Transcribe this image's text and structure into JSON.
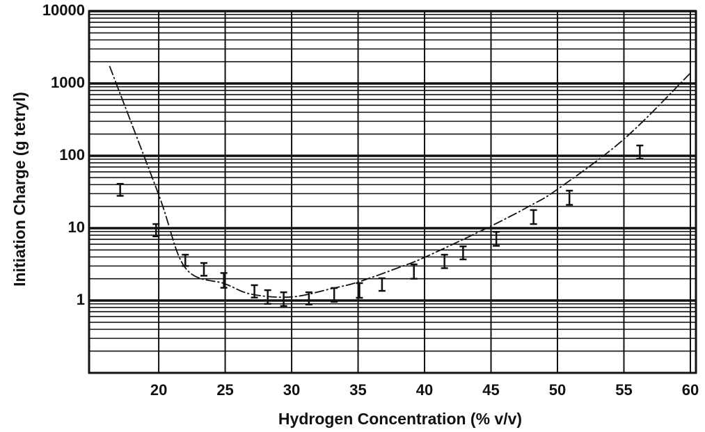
{
  "chart_data": {
    "type": "errorbar",
    "x_label": "Hydrogen Concentration (% v/v)",
    "y_label": "Initiation Charge (g tetryl)",
    "log_y": true,
    "grid": true,
    "color": "#111111",
    "xlim": [
      14.76,
      60.42
    ],
    "xticks": [
      20,
      25,
      30,
      35,
      40,
      45,
      50,
      55,
      60
    ],
    "ylim": [
      0.1,
      10000
    ],
    "yticks": [
      1,
      10,
      100,
      1000,
      10000
    ],
    "y_minor_grid": [
      0.2,
      0.3,
      0.4,
      0.5,
      0.6,
      0.7,
      0.8,
      0.9,
      2,
      3,
      4,
      5,
      6,
      7,
      8,
      9,
      20,
      30,
      40,
      50,
      60,
      70,
      80,
      90,
      200,
      300,
      400,
      500,
      600,
      700,
      800,
      900,
      2000,
      3000,
      4000,
      5000,
      6000,
      7000,
      8000,
      9000
    ],
    "x": [
      17.1,
      19.8,
      22.0,
      23.4,
      24.9,
      27.2,
      28.2,
      29.4,
      31.3,
      33.2,
      35.1,
      36.8,
      39.2,
      41.5,
      42.9,
      45.4,
      48.2,
      50.9,
      56.2
    ],
    "low": [
      28,
      7.7,
      3.0,
      2.2,
      1.5,
      1.1,
      0.9,
      0.84,
      0.88,
      0.96,
      1.09,
      1.36,
      2.0,
      2.8,
      3.7,
      5.7,
      11.4,
      21,
      91
    ],
    "high": [
      41,
      11.4,
      4.3,
      3.3,
      2.4,
      1.63,
      1.39,
      1.3,
      1.3,
      1.49,
      1.74,
      2.03,
      3.16,
      4.3,
      5.6,
      8.9,
      17.8,
      33,
      139
    ],
    "curve": {
      "x": [
        16.3,
        20,
        22,
        25,
        27,
        30,
        33,
        35,
        38,
        40,
        45,
        48,
        50,
        55,
        60
      ],
      "values": [
        1740,
        28.9,
        2.83,
        1.7,
        1.22,
        1.12,
        1.46,
        1.8,
        2.83,
        3.95,
        10.7,
        20.7,
        34.5,
        170,
        1390
      ]
    }
  }
}
